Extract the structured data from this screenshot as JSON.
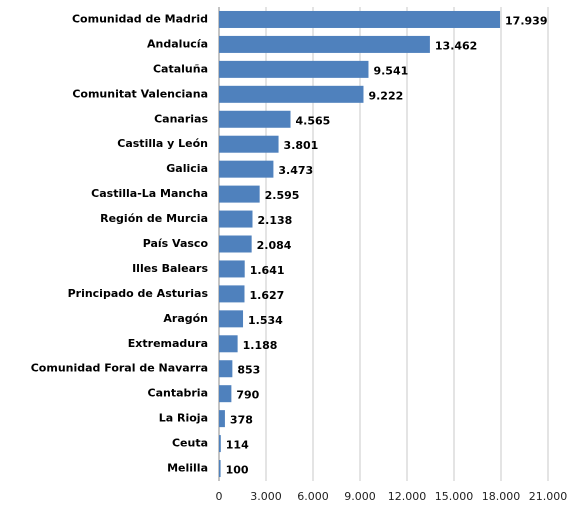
{
  "chart_data": {
    "type": "bar",
    "orientation": "horizontal",
    "color": "#4f81bd",
    "categories": [
      "Comunidad de Madrid",
      "Andalucía",
      "Cataluña",
      "Comunitat Valenciana",
      "Canarias",
      "Castilla y León",
      "Galicia",
      "Castilla-La Mancha",
      "Región de Murcia",
      "País Vasco",
      "Illes Balears",
      "Principado de Asturias",
      "Aragón",
      "Extremadura",
      "Comunidad Foral de Navarra",
      "Cantabria",
      "La Rioja",
      "Ceuta",
      "Melilla"
    ],
    "values": [
      17939,
      13462,
      9541,
      9222,
      4565,
      3801,
      3473,
      2595,
      2138,
      2084,
      1641,
      1627,
      1534,
      1188,
      853,
      790,
      378,
      114,
      100
    ],
    "value_labels": [
      "17.939",
      "13.462",
      "9.541",
      "9.222",
      "4.565",
      "3.801",
      "3.473",
      "2.595",
      "2.138",
      "2.084",
      "1.641",
      "1.627",
      "1.534",
      "1.188",
      "853",
      "790",
      "378",
      "114",
      "100"
    ],
    "xlim": [
      0,
      21000
    ],
    "xticks": [
      0,
      {
        "value": 3000,
        "label": "3.000"
      },
      {
        "value": 6000,
        "label": "6.000"
      },
      {
        "value": 9000,
        "label": "9.000"
      },
      {
        "value": 12000,
        "label": "12.000"
      },
      {
        "value": 15000,
        "label": "15.000"
      },
      {
        "value": 18000,
        "label": "18.000"
      },
      {
        "value": 21000,
        "label": "21.000"
      }
    ],
    "grid": true
  }
}
